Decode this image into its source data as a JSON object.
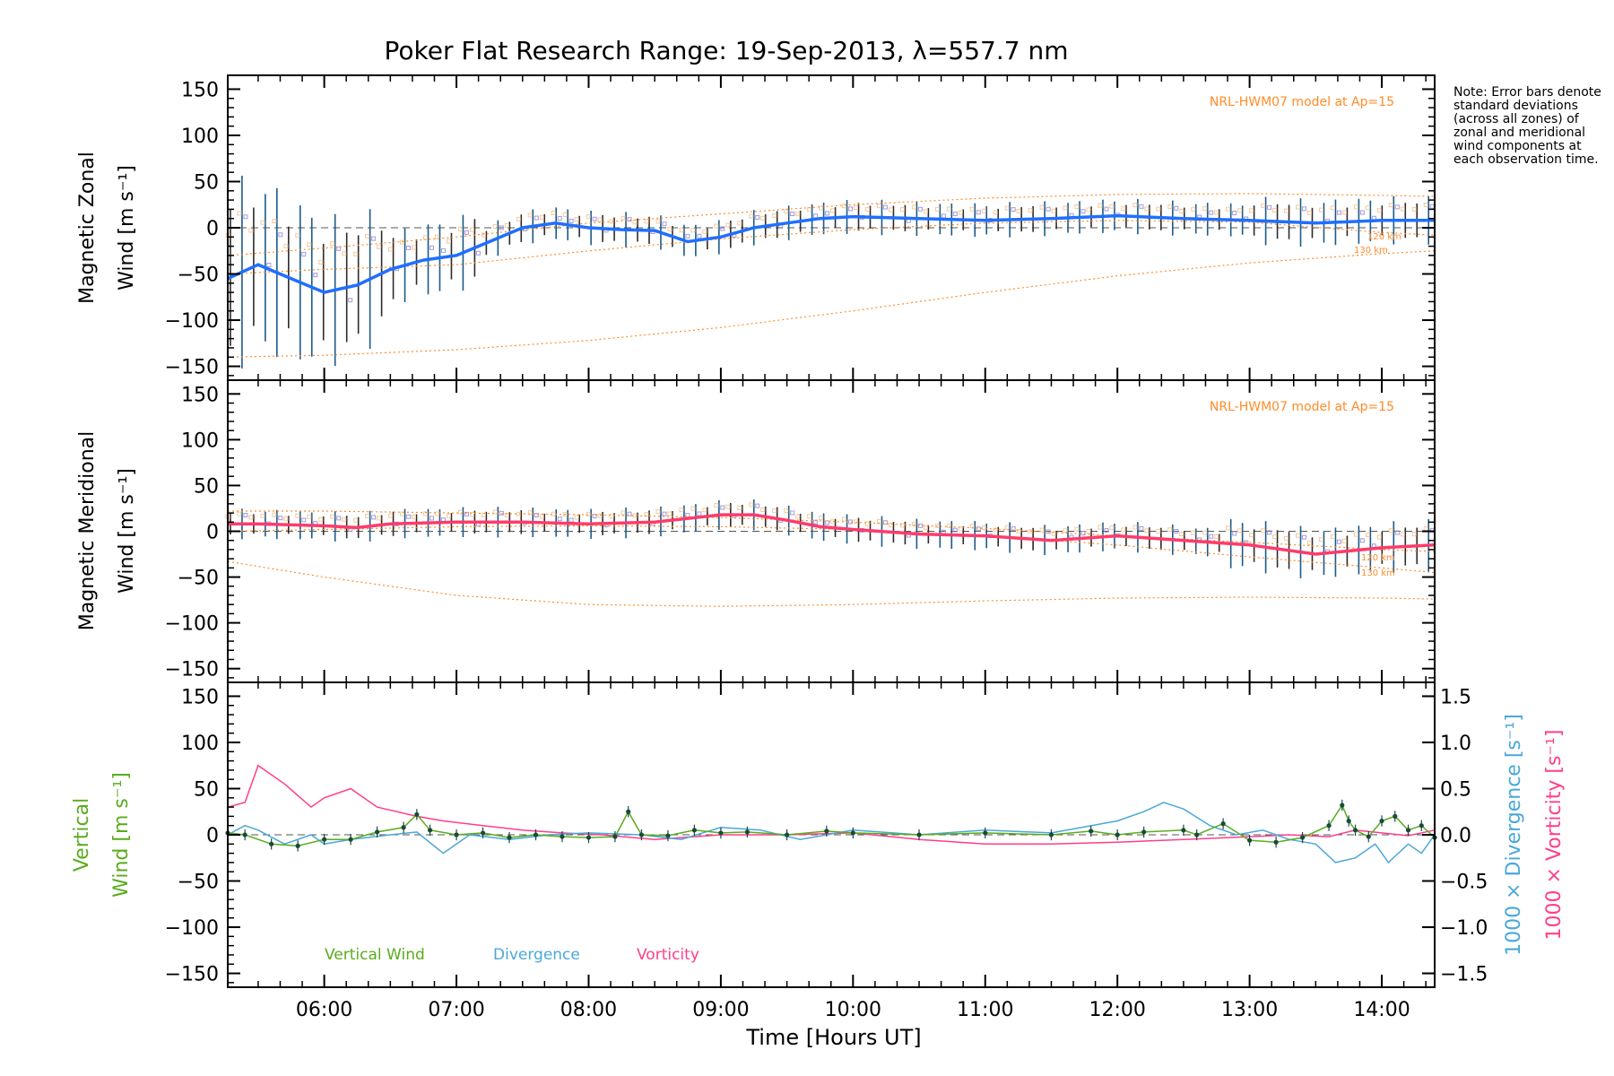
{
  "title": "Poker Flat Research Range: 19-Sep-2013, λ=557.7 nm",
  "note": "Note: Error bars denote standard deviations (across all zones) of zonal and meridional wind components at each observation time.",
  "colors": {
    "zonal": "#1f6fff",
    "meridional": "#ff3b6b",
    "vertical": "#5aab1e",
    "divergence": "#4aa8d8",
    "vorticity": "#ff3e8a",
    "model": "#ff8c2a",
    "scatter": "#a39bdc"
  },
  "chart_data": [
    {
      "type": "line",
      "panel": "zonal",
      "ylabel_line1": "Magnetic Zonal",
      "ylabel_line2": "Wind [m s⁻¹]",
      "ylim": [
        -165,
        165
      ],
      "yticks": [
        "150",
        "100",
        "50",
        "0",
        "−50",
        "−100",
        "−150"
      ],
      "model_label": "NRL-HWM07 model at Ap=15",
      "model_altitudes": [
        "120 km",
        "130 km"
      ],
      "xlim_hours": [
        5.27,
        14.4
      ],
      "series": [
        {
          "name": "Zonal wind",
          "x": [
            5.27,
            5.5,
            5.75,
            6.0,
            6.25,
            6.5,
            6.75,
            7.0,
            7.25,
            7.5,
            7.75,
            8.0,
            8.25,
            8.5,
            8.75,
            9.0,
            9.25,
            9.5,
            9.75,
            10.0,
            10.5,
            11.0,
            11.5,
            12.0,
            12.5,
            13.0,
            13.5,
            14.0,
            14.4
          ],
          "y": [
            -55,
            -40,
            -55,
            -70,
            -62,
            -45,
            -35,
            -30,
            -15,
            0,
            5,
            0,
            -2,
            -3,
            -15,
            -10,
            0,
            5,
            10,
            12,
            10,
            8,
            10,
            13,
            10,
            8,
            5,
            8,
            8
          ]
        },
        {
          "name": "Model 120 km",
          "x": [
            5.27,
            6.0,
            7.0,
            8.0,
            9.0,
            10.0,
            11.0,
            12.0,
            13.0,
            14.0,
            14.4
          ],
          "y": [
            -30,
            -22,
            -10,
            5,
            15,
            25,
            32,
            36,
            37,
            35,
            34
          ]
        },
        {
          "name": "Model 130 km",
          "x": [
            5.27,
            6.0,
            7.0,
            8.0,
            9.0,
            10.0,
            11.0,
            12.0,
            13.0,
            14.0,
            14.4
          ],
          "y": [
            -50,
            -45,
            -40,
            -25,
            -12,
            -2,
            5,
            8,
            6,
            -5,
            -8
          ]
        },
        {
          "name": "Model 150 km",
          "x": [
            5.27,
            6.0,
            7.0,
            8.0,
            9.0,
            10.0,
            11.0,
            12.0,
            13.0,
            14.0,
            14.4
          ],
          "y": [
            -140,
            -138,
            -132,
            -122,
            -108,
            -90,
            -70,
            -52,
            -38,
            -28,
            -25
          ]
        }
      ]
    },
    {
      "type": "line",
      "panel": "meridional",
      "ylabel_line1": "Magnetic Meridional",
      "ylabel_line2": "Wind [m s⁻¹]",
      "ylim": [
        -165,
        165
      ],
      "yticks": [
        "150",
        "100",
        "50",
        "0",
        "−50",
        "−100",
        "−150"
      ],
      "model_label": "NRL-HWM07 model at Ap=15",
      "model_altitudes": [
        "120 km",
        "130 km"
      ],
      "xlim_hours": [
        5.27,
        14.4
      ],
      "series": [
        {
          "name": "Meridional wind",
          "x": [
            5.27,
            5.5,
            6.0,
            6.25,
            6.5,
            7.0,
            7.5,
            8.0,
            8.5,
            9.0,
            9.25,
            9.5,
            9.75,
            10.0,
            10.5,
            11.0,
            11.5,
            12.0,
            12.5,
            13.0,
            13.5,
            14.0,
            14.4
          ],
          "y": [
            8,
            8,
            6,
            4,
            8,
            10,
            10,
            8,
            10,
            18,
            18,
            12,
            5,
            2,
            -3,
            -5,
            -10,
            -5,
            -10,
            -15,
            -25,
            -18,
            -15
          ]
        },
        {
          "name": "Model 120 km",
          "x": [
            5.27,
            6.0,
            7.0,
            8.0,
            9.0,
            10.0,
            11.0,
            12.0,
            13.0,
            14.0,
            14.4
          ],
          "y": [
            22,
            22,
            20,
            18,
            15,
            10,
            3,
            -5,
            -12,
            -20,
            -22
          ]
        },
        {
          "name": "Model 130 km",
          "x": [
            5.27,
            6.0,
            7.0,
            8.0,
            9.0,
            10.0,
            11.0,
            12.0,
            13.0,
            14.0,
            14.4
          ],
          "y": [
            0,
            2,
            5,
            6,
            5,
            2,
            -5,
            -15,
            -28,
            -40,
            -45
          ]
        },
        {
          "name": "Model 150 km",
          "x": [
            5.27,
            6.0,
            7.0,
            8.0,
            9.0,
            10.0,
            11.0,
            12.0,
            13.0,
            14.0,
            14.4
          ],
          "y": [
            -33,
            -50,
            -70,
            -80,
            -82,
            -80,
            -76,
            -73,
            -72,
            -73,
            -74
          ]
        }
      ]
    },
    {
      "type": "line",
      "panel": "vertical",
      "ylabel_line1": "Vertical",
      "ylabel_line2": "Wind [m s⁻¹]",
      "ylim": [
        -165,
        165
      ],
      "yticks": [
        "150",
        "100",
        "50",
        "0",
        "−50",
        "−100",
        "−150"
      ],
      "y2label_divergence": "1000 × Divergence [s⁻¹]",
      "y2label_vorticity": "1000 × Vorticity [s⁻¹]",
      "y2lim": [
        -1.65,
        1.65
      ],
      "y2ticks": [
        "1.5",
        "1.0",
        "0.5",
        "0.0",
        "−0.5",
        "−1.0",
        "−1.5"
      ],
      "legend": [
        "Vertical Wind",
        "Divergence",
        "Vorticity"
      ],
      "xlim_hours": [
        5.27,
        14.4
      ],
      "xticks": [
        "06:00",
        "07:00",
        "08:00",
        "09:00",
        "10:00",
        "11:00",
        "12:00",
        "13:00",
        "14:00"
      ],
      "xlabel": "Time [Hours UT]",
      "series": [
        {
          "name": "Vertical Wind",
          "x": [
            5.27,
            5.4,
            5.6,
            5.8,
            6.0,
            6.2,
            6.4,
            6.6,
            6.7,
            6.8,
            7.0,
            7.2,
            7.4,
            7.6,
            7.8,
            8.0,
            8.2,
            8.3,
            8.4,
            8.6,
            8.8,
            9.0,
            9.2,
            9.5,
            9.8,
            10.0,
            10.5,
            11.0,
            11.5,
            11.8,
            12.0,
            12.2,
            12.5,
            12.6,
            12.8,
            13.0,
            13.2,
            13.4,
            13.6,
            13.7,
            13.75,
            13.8,
            13.9,
            14.0,
            14.1,
            14.2,
            14.3,
            14.4
          ],
          "y": [
            2,
            0,
            -10,
            -12,
            -5,
            -5,
            3,
            8,
            22,
            5,
            0,
            2,
            -3,
            0,
            -2,
            -3,
            -2,
            25,
            0,
            -1,
            5,
            2,
            3,
            0,
            4,
            2,
            0,
            2,
            0,
            4,
            0,
            3,
            5,
            0,
            12,
            -6,
            -8,
            -3,
            10,
            32,
            15,
            5,
            -2,
            15,
            20,
            5,
            10,
            -3
          ]
        },
        {
          "name": "Divergence",
          "x": [
            5.27,
            5.4,
            5.5,
            5.7,
            5.9,
            6.0,
            6.2,
            6.5,
            6.7,
            6.9,
            7.1,
            7.4,
            7.7,
            8.0,
            8.4,
            8.7,
            9.0,
            9.3,
            9.6,
            10.0,
            10.5,
            11.0,
            11.5,
            12.0,
            12.2,
            12.35,
            12.5,
            12.7,
            12.9,
            13.1,
            13.3,
            13.5,
            13.65,
            13.8,
            13.95,
            14.05,
            14.2,
            14.3,
            14.4
          ],
          "y": [
            0.0,
            0.1,
            0.05,
            -0.1,
            0.0,
            -0.1,
            -0.05,
            0.0,
            0.03,
            -0.2,
            0.0,
            -0.05,
            0.0,
            0.02,
            0.0,
            -0.05,
            0.08,
            0.05,
            -0.05,
            0.05,
            0.0,
            0.05,
            0.02,
            0.15,
            0.25,
            0.35,
            0.28,
            0.1,
            0.0,
            0.05,
            -0.05,
            -0.1,
            -0.3,
            -0.25,
            -0.1,
            -0.3,
            -0.1,
            -0.2,
            0.0
          ]
        },
        {
          "name": "Vorticity",
          "x": [
            5.27,
            5.4,
            5.5,
            5.7,
            5.9,
            6.0,
            6.2,
            6.4,
            6.7,
            6.9,
            7.2,
            7.5,
            7.8,
            8.1,
            8.5,
            9.0,
            9.5,
            10.0,
            10.5,
            11.0,
            11.5,
            12.0,
            12.5,
            13.0,
            13.3,
            13.6,
            13.8,
            14.0,
            14.2,
            14.4
          ],
          "y": [
            0.3,
            0.35,
            0.75,
            0.55,
            0.3,
            0.4,
            0.5,
            0.3,
            0.2,
            0.15,
            0.1,
            0.05,
            0.02,
            0.0,
            -0.05,
            0.0,
            0.0,
            0.02,
            -0.05,
            -0.1,
            -0.1,
            -0.08,
            -0.05,
            -0.02,
            0.0,
            -0.02,
            0.05,
            0.02,
            -0.01,
            0.05
          ]
        }
      ]
    }
  ]
}
